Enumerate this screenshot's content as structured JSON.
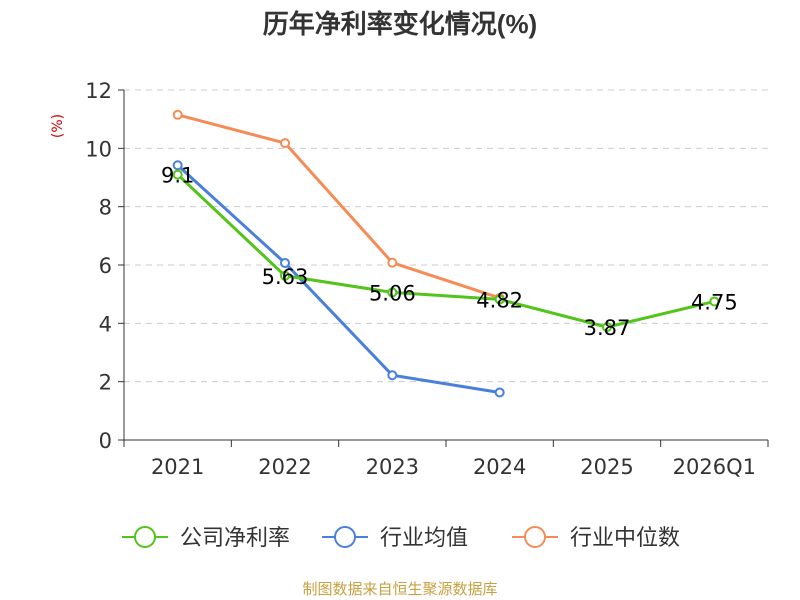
{
  "chart_data": {
    "type": "line",
    "title": "历年净利率变化情况(%)",
    "ylabel": "(%)",
    "xlabel": "",
    "categories": [
      "2021",
      "2022",
      "2023",
      "2024",
      "2025",
      "2026Q1"
    ],
    "ylim": [
      0,
      12
    ],
    "yticks": [
      0,
      2,
      4,
      6,
      8,
      10,
      12
    ],
    "grid": true,
    "legend_position": "bottom",
    "series": [
      {
        "name": "公司净利率",
        "color": "#52c41a",
        "values": [
          9.1,
          5.63,
          5.06,
          4.82,
          3.87,
          4.75
        ],
        "labels": [
          "9.1",
          "5.63",
          "5.06",
          "4.82",
          "3.87",
          "4.75"
        ]
      },
      {
        "name": "行业均值",
        "color": "#4a7fdc",
        "values": [
          9.42,
          6.07,
          2.22,
          1.63,
          null,
          null
        ]
      },
      {
        "name": "行业中位数",
        "color": "#f58c57",
        "values": [
          11.15,
          10.18,
          6.08,
          4.87,
          null,
          null
        ]
      }
    ]
  },
  "source": "制图数据来自恒生聚源数据库"
}
